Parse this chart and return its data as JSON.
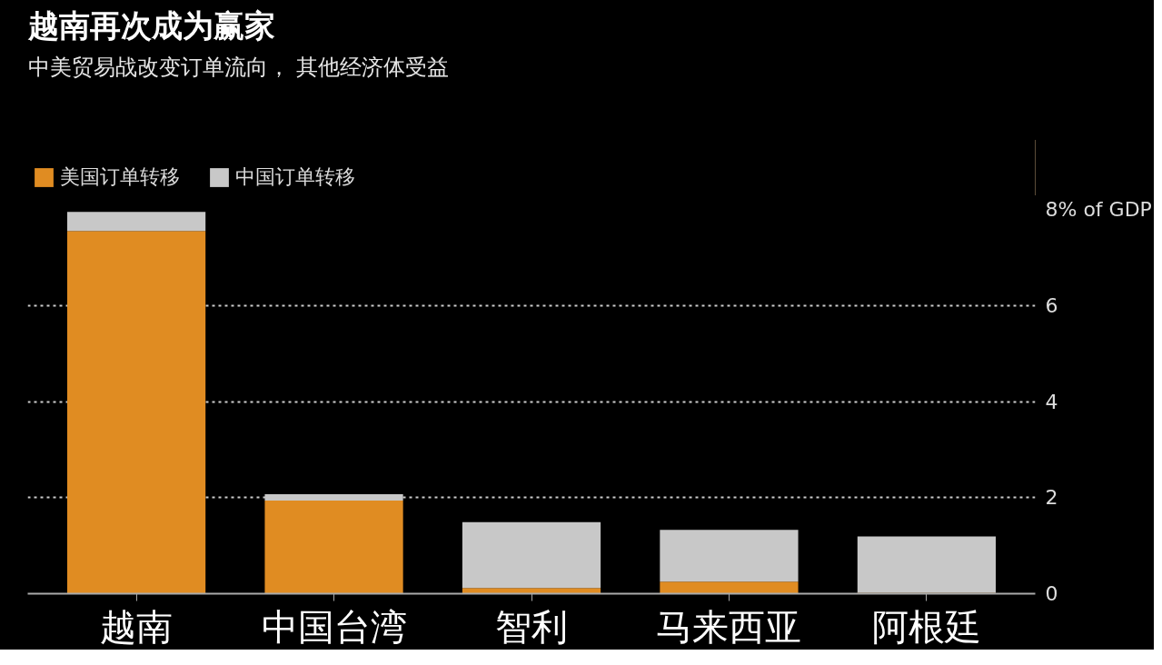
{
  "chart_data": {
    "type": "bar",
    "title": "越南再次成为赢家",
    "subtitle": "中美贸易战改变订单流向， 其他经济体受益",
    "categories": [
      "越南",
      "中国台湾",
      "智利",
      "马来西亚",
      "阿根廷"
    ],
    "stacked": true,
    "series": [
      {
        "name": "美国订单转移",
        "color": "#e08c22",
        "values": [
          7.55,
          1.94,
          0.12,
          0.25,
          0.02
        ]
      },
      {
        "name": "中国订单转移",
        "color": "#c8c8c8",
        "values": [
          0.4,
          0.13,
          1.37,
          1.08,
          1.17
        ]
      }
    ],
    "ylim": [
      0,
      8
    ],
    "yticks": [
      0,
      2,
      4,
      6,
      {
        "value": 8,
        "label": "8% of GDP"
      }
    ],
    "grid": "y",
    "legend": "top left"
  }
}
